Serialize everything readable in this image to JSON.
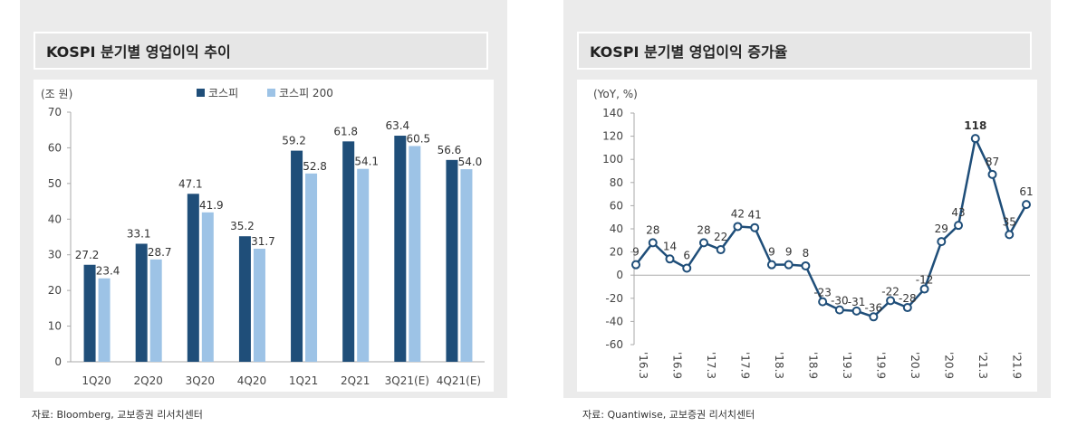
{
  "panels": [
    {
      "title": "KOSPI 분기별 영업이익 추이",
      "source": "자료: Bloomberg, 교보증권 리서치센터"
    },
    {
      "title": "KOSPI 분기별 영업이익 증가율",
      "source": "자료: Quantiwise, 교보증권 리서치센터"
    }
  ],
  "chart_data": [
    {
      "type": "bar",
      "title": "KOSPI 분기별 영업이익 추이",
      "ylabel": "(조 원)",
      "ylim": [
        0,
        70
      ],
      "yticks": [
        0,
        10,
        20,
        30,
        40,
        50,
        60,
        70
      ],
      "categories": [
        "1Q20",
        "2Q20",
        "3Q20",
        "4Q20",
        "1Q21",
        "2Q21",
        "3Q21(E)",
        "4Q21(E)"
      ],
      "series": [
        {
          "name": "코스피",
          "color": "#1f4e79",
          "values": [
            27.2,
            33.1,
            47.1,
            35.2,
            59.2,
            61.8,
            63.4,
            56.6
          ]
        },
        {
          "name": "코스피 200",
          "color": "#9dc3e6",
          "values": [
            23.4,
            28.7,
            41.9,
            31.7,
            52.8,
            54.1,
            60.5,
            54.0
          ]
        }
      ],
      "legend": "top",
      "grid": false
    },
    {
      "type": "line",
      "title": "KOSPI 분기별 영업이익 증가율",
      "ylabel": "(YoY, %)",
      "ylim": [
        -60,
        140
      ],
      "yticks": [
        -60,
        -40,
        -20,
        0,
        20,
        40,
        60,
        80,
        100,
        120,
        140
      ],
      "xticklabels": [
        "'16.3",
        "'16.9",
        "'17.3",
        "'17.9",
        "'18.3",
        "'18.9",
        "'19.3",
        "'19.9",
        "'20.3",
        "'20.9",
        "'21.3",
        "'21.9"
      ],
      "x": [
        "'16.3",
        "'16.6",
        "'16.9",
        "'16.12",
        "'17.3",
        "'17.6",
        "'17.9",
        "'17.12",
        "'18.3",
        "'18.6",
        "'18.9",
        "'18.12",
        "'19.3",
        "'19.6",
        "'19.9",
        "'19.12",
        "'20.3",
        "'20.6",
        "'20.9",
        "'20.12",
        "'21.3",
        "'21.6",
        "'21.9",
        "'21.12"
      ],
      "values": [
        9,
        28,
        14,
        6,
        28,
        22,
        42,
        41,
        9,
        9,
        8,
        -23,
        -30,
        -31,
        -36,
        -22,
        -28,
        -12,
        29,
        43,
        118,
        87,
        35,
        61
      ],
      "color": "#1f4e79",
      "grid": false
    }
  ]
}
